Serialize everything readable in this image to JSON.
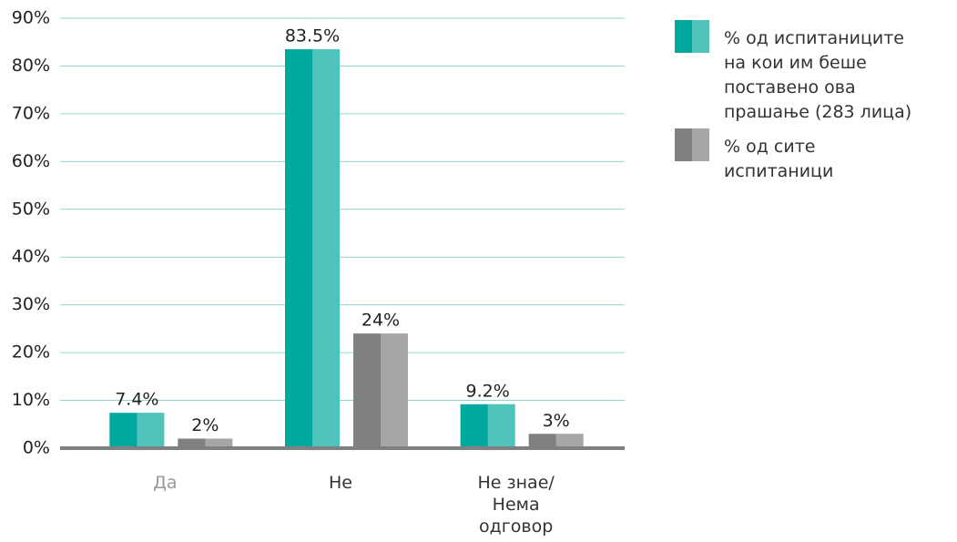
{
  "chart_data": {
    "type": "bar",
    "categories": [
      "Да",
      "Не",
      "Не знае/\nНема\nодговор"
    ],
    "series": [
      {
        "name": "%  од испитаниците\nна кои им беше\nпоставено ова\nпрашање (283 лица)",
        "color": "#00a99d",
        "values": [
          7.4,
          83.5,
          9.2
        ],
        "value_labels": [
          "7.4%",
          "83.5%",
          "9.2%"
        ]
      },
      {
        "name": "% од сите\nиспитаници",
        "color": "#808083",
        "values": [
          2,
          24,
          3
        ],
        "value_labels": [
          "2%",
          "24%",
          "3%"
        ]
      }
    ],
    "ylim": [
      0,
      90
    ],
    "yticks": [
      {
        "value": 0,
        "label": "0%"
      },
      {
        "value": 10,
        "label": "10%"
      },
      {
        "value": 20,
        "label": "20%"
      },
      {
        "value": 30,
        "label": "30%"
      },
      {
        "value": 40,
        "label": "40%"
      },
      {
        "value": 50,
        "label": "50%"
      },
      {
        "value": 60,
        "label": "60%"
      },
      {
        "value": 70,
        "label": "70%"
      },
      {
        "value": 80,
        "label": "80%"
      },
      {
        "value": 90,
        "label": "90%"
      }
    ],
    "grid": true,
    "legend": "right"
  }
}
